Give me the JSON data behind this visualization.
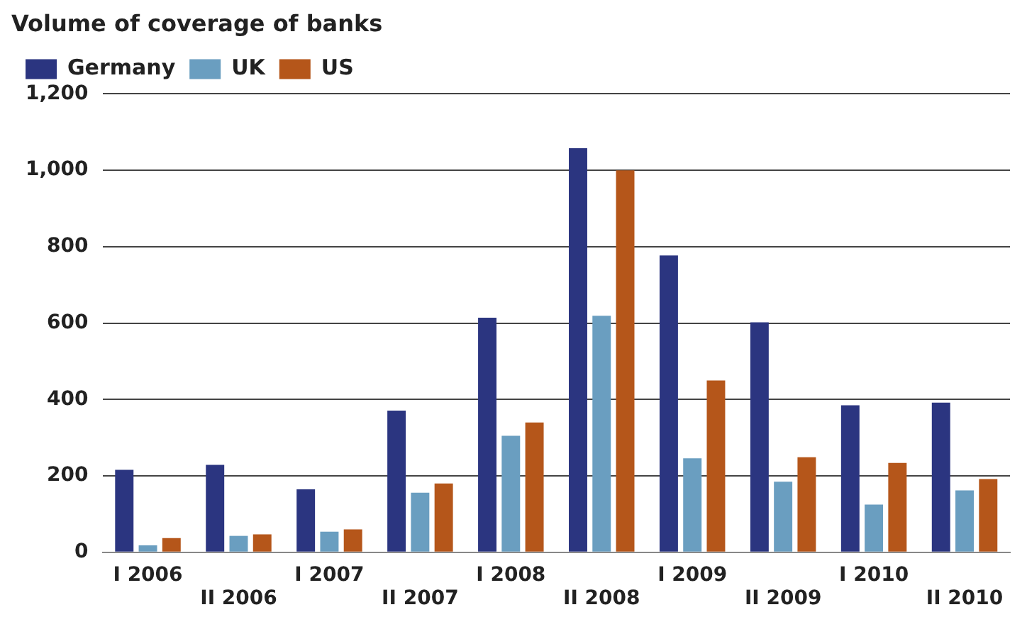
{
  "chart_data": {
    "type": "bar",
    "title": "Volume of coverage of banks",
    "categories": [
      "I 2006",
      "II 2006",
      "I 2007",
      "II 2007",
      "I 2008",
      "II 2008",
      "I 2009",
      "II 2009",
      "I 2010",
      "II 2010"
    ],
    "series": [
      {
        "name": "Germany",
        "color": "#2b3580",
        "values": [
          216,
          229,
          165,
          371,
          614,
          1058,
          777,
          602,
          385,
          392
        ]
      },
      {
        "name": "UK",
        "color": "#6a9ec0",
        "values": [
          18,
          43,
          54,
          156,
          305,
          619,
          246,
          185,
          125,
          162
        ]
      },
      {
        "name": "US",
        "color": "#b5561a",
        "values": [
          37,
          47,
          60,
          180,
          340,
          1000,
          450,
          249,
          234,
          192
        ]
      }
    ],
    "ylim": [
      0,
      1200
    ],
    "yticks": [
      0,
      200,
      400,
      600,
      800,
      {
        "value": 1000,
        "label": "1,000"
      },
      {
        "value": 1200,
        "label": "1,200"
      }
    ],
    "grid": "y",
    "legend": "top left"
  }
}
